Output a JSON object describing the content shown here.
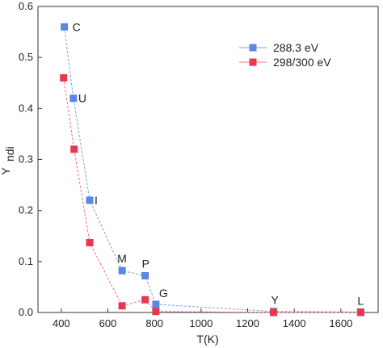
{
  "chart_data": {
    "type": "scatter",
    "xlabel": "T(K)",
    "ylabel_main": "Y",
    "ylabel_sub": "ndi",
    "xlim": [
      300,
      1760
    ],
    "ylim": [
      0,
      0.6
    ],
    "x_ticks": [
      400,
      600,
      800,
      1000,
      1200,
      1400,
      1600
    ],
    "y_ticks": [
      0.0,
      0.1,
      0.2,
      0.3,
      0.4,
      0.5,
      0.6
    ],
    "grid": false,
    "legend_position": "top-right",
    "series": [
      {
        "name": "288.3 eV",
        "color": "#5b86e5",
        "line_color": "#7f9de8",
        "points": [
          {
            "x": 413,
            "y": 0.56,
            "label": "C"
          },
          {
            "x": 452,
            "y": 0.42,
            "label": "U"
          },
          {
            "x": 522,
            "y": 0.22,
            "label": "I"
          },
          {
            "x": 661,
            "y": 0.082,
            "label": "M"
          },
          {
            "x": 760,
            "y": 0.072,
            "label": "P"
          },
          {
            "x": 806,
            "y": 0.016,
            "label": "G"
          },
          {
            "x": 1311,
            "y": 0.002,
            "label": "Y"
          },
          {
            "x": 1685,
            "y": 0.001,
            "label": "L"
          }
        ]
      },
      {
        "name": "298/300 eV",
        "color": "#e8374f",
        "line_color": "#ef6d7c",
        "points": [
          {
            "x": 410,
            "y": 0.46
          },
          {
            "x": 455,
            "y": 0.32
          },
          {
            "x": 522,
            "y": 0.137
          },
          {
            "x": 661,
            "y": 0.013
          },
          {
            "x": 760,
            "y": 0.025
          },
          {
            "x": 806,
            "y": 0.002
          },
          {
            "x": 1311,
            "y": 0.0
          },
          {
            "x": 1685,
            "y": 0.0
          }
        ]
      }
    ]
  }
}
